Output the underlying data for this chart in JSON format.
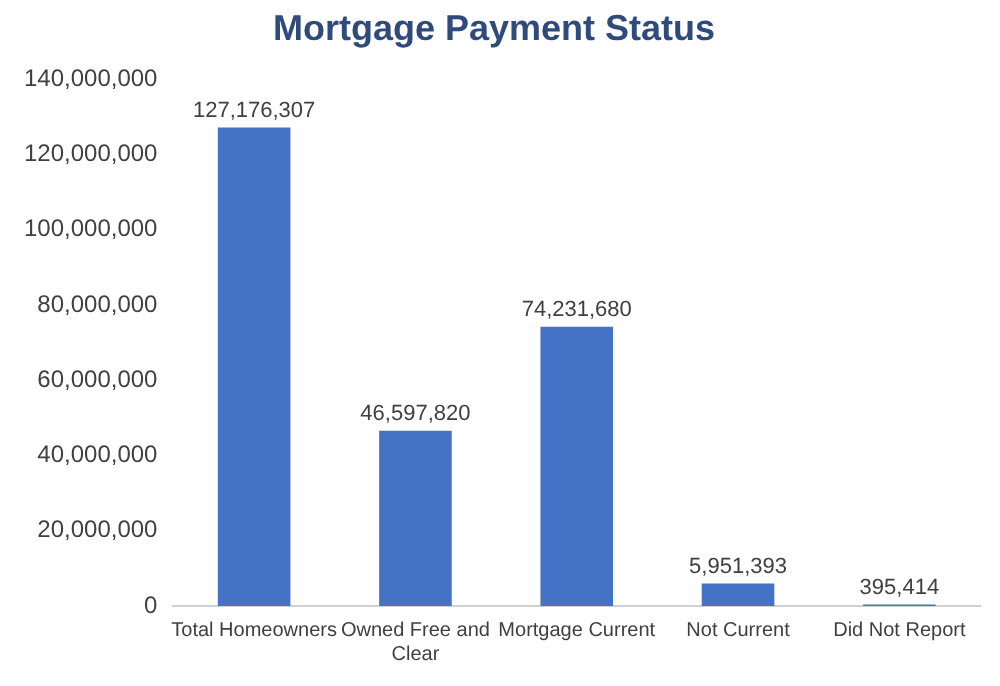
{
  "chart_data": {
    "type": "bar",
    "title": "Mortgage Payment Status",
    "categories": [
      "Total Homeowners",
      "Owned Free and Clear",
      "Mortgage Current",
      "Not Current",
      "Did Not Report"
    ],
    "values": [
      127176307,
      46597820,
      74231680,
      5951393,
      395414
    ],
    "color": "#4472c4",
    "value_labels": [
      "127,176,307",
      "46,597,820",
      "74,231,680",
      "5,951,393",
      "395,414"
    ],
    "ylim": [
      0,
      140000000
    ],
    "yticks": [
      {
        "value": 0,
        "label": "0"
      },
      {
        "value": 20000000,
        "label": "20,000,000"
      },
      {
        "value": 40000000,
        "label": "40,000,000"
      },
      {
        "value": 60000000,
        "label": "60,000,000"
      },
      {
        "value": 80000000,
        "label": "80,000,000"
      },
      {
        "value": 100000000,
        "label": "100,000,000"
      },
      {
        "value": 120000000,
        "label": "120,000,000"
      },
      {
        "value": 140000000,
        "label": "140,000,000"
      }
    ],
    "grid": false,
    "legend": false
  }
}
